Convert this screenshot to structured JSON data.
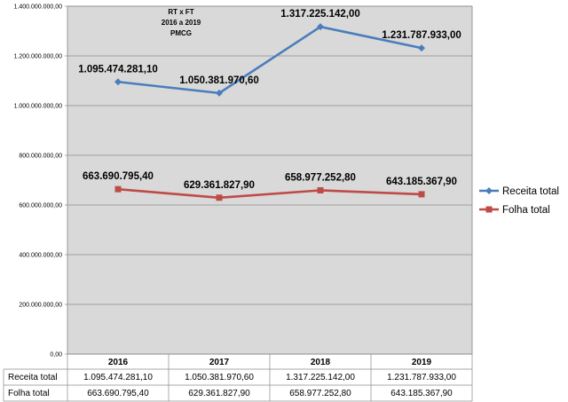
{
  "chart_data": {
    "type": "line",
    "title_lines": [
      "RT x FT",
      "2016 a 2019",
      "PMCG"
    ],
    "categories": [
      "2016",
      "2017",
      "2018",
      "2019"
    ],
    "ylim": [
      0,
      1400000000
    ],
    "yticks": [
      0,
      200000000,
      400000000,
      600000000,
      800000000,
      1000000000,
      1200000000,
      1400000000
    ],
    "ytick_labels": [
      "0,00",
      "200.000.000,00",
      "400.000.000,00",
      "600.000.000,00",
      "800.000.000,00",
      "1.000.000.000,00",
      "1.200.000.000,00",
      "1.400.000.000,00"
    ],
    "grid": true,
    "legend_position": "right",
    "series": [
      {
        "name": "Receita total",
        "color": "#4a7ebb",
        "marker": "diamond",
        "values": [
          1095474281.1,
          1050381970.6,
          1317225142.0,
          1231787933.0
        ],
        "labels": [
          "1.095.474.281,10",
          "1.050.381.970,60",
          "1.317.225.142,00",
          "1.231.787.933,00"
        ]
      },
      {
        "name": "Folha total",
        "color": "#be4b48",
        "marker": "square",
        "values": [
          663690795.4,
          629361827.9,
          658977252.8,
          643185367.9
        ],
        "labels": [
          "663.690.795,40",
          "629.361.827,90",
          "658.977.252,80",
          "643.185.367,90"
        ]
      }
    ]
  }
}
